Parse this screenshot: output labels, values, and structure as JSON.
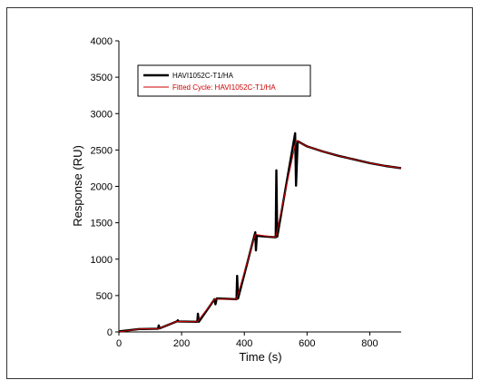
{
  "chart_data": {
    "type": "line",
    "xlabel": "Time (s)",
    "ylabel": "Response (RU)",
    "xlim": [
      0,
      900
    ],
    "ylim": [
      0,
      4000
    ],
    "x_ticks": [
      0,
      200,
      400,
      600,
      800
    ],
    "y_ticks": [
      0,
      500,
      1000,
      1500,
      2000,
      2500,
      3000,
      3500,
      4000
    ],
    "grid": false,
    "legend_position": "top-left",
    "series": [
      {
        "name": "HAVI1052C-T1/HA",
        "color": "#000000",
        "style": "thick",
        "x": [
          0,
          5,
          65,
          70,
          125,
          127,
          130,
          185,
          188,
          190,
          250,
          252,
          255,
          305,
          308,
          312,
          375,
          377,
          380,
          435,
          437,
          440,
          500,
          502,
          505,
          562,
          565,
          570,
          600,
          650,
          700,
          750,
          800,
          850,
          900
        ],
        "y": [
          0,
          10,
          40,
          40,
          45,
          90,
          50,
          145,
          160,
          145,
          140,
          250,
          140,
          450,
          380,
          460,
          450,
          770,
          460,
          1370,
          1120,
          1320,
          1300,
          2220,
          1310,
          2730,
          2010,
          2620,
          2550,
          2480,
          2420,
          2370,
          2320,
          2280,
          2250
        ]
      },
      {
        "name": "Fitted Cycle: HAVI1052C-T1/HA",
        "color": "#cc0000",
        "style": "thin",
        "x": [
          0,
          65,
          125,
          185,
          250,
          305,
          375,
          435,
          500,
          565,
          600,
          650,
          700,
          750,
          800,
          850,
          900
        ],
        "y": [
          0,
          40,
          45,
          145,
          140,
          450,
          450,
          1340,
          1300,
          2630,
          2550,
          2480,
          2420,
          2370,
          2320,
          2280,
          2250
        ]
      }
    ]
  }
}
